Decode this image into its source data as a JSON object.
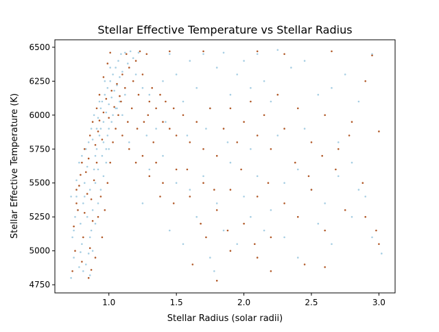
{
  "chart_data": {
    "type": "scatter",
    "title": "Stellar Effective Temperature vs Stellar Radius",
    "xlabel": "Stellar Radius (solar radii)",
    "ylabel": "Stellar Effective Temperature (K)",
    "xlim": [
      0.6,
      3.12
    ],
    "ylim": [
      4690,
      6555
    ],
    "xticks": [
      "1.0",
      "1.5",
      "2.0",
      "2.5",
      "3.0"
    ],
    "yticks": [
      "4750",
      "5000",
      "5250",
      "5500",
      "5750",
      "6000",
      "6250",
      "6500"
    ],
    "grid": false,
    "legend": "none",
    "series": [
      {
        "color": "#a6cee3",
        "points": [
          [
            0.72,
            4800
          ],
          [
            0.74,
            4950
          ],
          [
            0.73,
            5100
          ],
          [
            0.75,
            5250
          ],
          [
            0.72,
            5400
          ],
          [
            0.76,
            5520
          ],
          [
            0.78,
            4880
          ],
          [
            0.8,
            5050
          ],
          [
            0.79,
            5200
          ],
          [
            0.81,
            5350
          ],
          [
            0.82,
            5500
          ],
          [
            0.84,
            5620
          ],
          [
            0.83,
            5750
          ],
          [
            0.86,
            4820
          ],
          [
            0.85,
            4980
          ],
          [
            0.87,
            5150
          ],
          [
            0.88,
            5300
          ],
          [
            0.86,
            5450
          ],
          [
            0.89,
            5600
          ],
          [
            0.9,
            5700
          ],
          [
            0.88,
            5820
          ],
          [
            0.91,
            5900
          ],
          [
            0.92,
            5980
          ],
          [
            0.93,
            5850
          ],
          [
            0.94,
            6050
          ],
          [
            0.95,
            6100
          ],
          [
            0.96,
            5950
          ],
          [
            0.97,
            6150
          ],
          [
            0.98,
            6020
          ],
          [
            0.99,
            6200
          ],
          [
            1.0,
            6080
          ],
          [
            1.01,
            6250
          ],
          [
            1.02,
            6130
          ],
          [
            1.03,
            6300
          ],
          [
            1.04,
            6180
          ],
          [
            1.05,
            6350
          ],
          [
            1.06,
            6220
          ],
          [
            1.07,
            6400
          ],
          [
            1.08,
            6280
          ],
          [
            1.09,
            6450
          ],
          [
            1.1,
            6320
          ],
          [
            1.12,
            6460
          ],
          [
            1.14,
            6380
          ],
          [
            1.16,
            6470
          ],
          [
            1.18,
            6420
          ],
          [
            1.2,
            6300
          ],
          [
            1.22,
            6460
          ],
          [
            1.25,
            6200
          ],
          [
            0.95,
            5700
          ],
          [
            0.92,
            5600
          ],
          [
            0.9,
            5500
          ],
          [
            0.96,
            5800
          ],
          [
            1.0,
            5900
          ],
          [
            0.98,
            5750
          ],
          [
            1.03,
            6000
          ],
          [
            1.05,
            6050
          ],
          [
            0.85,
            5800
          ],
          [
            0.87,
            5900
          ],
          [
            0.89,
            6000
          ],
          [
            0.93,
            6100
          ],
          [
            0.97,
            6250
          ],
          [
            1.01,
            6350
          ],
          [
            0.8,
            5700
          ],
          [
            0.78,
            5650
          ],
          [
            1.3,
            6150
          ],
          [
            1.35,
            5900
          ],
          [
            1.4,
            6250
          ],
          [
            1.45,
            6450
          ],
          [
            1.5,
            6300
          ],
          [
            1.55,
            6100
          ],
          [
            1.6,
            6400
          ],
          [
            1.65,
            6200
          ],
          [
            1.7,
            6450
          ],
          [
            1.75,
            6050
          ],
          [
            1.8,
            6350
          ],
          [
            1.85,
            6460
          ],
          [
            1.9,
            6150
          ],
          [
            1.95,
            6300
          ],
          [
            2.0,
            6400
          ],
          [
            2.05,
            6200
          ],
          [
            2.1,
            6450
          ],
          [
            2.15,
            6250
          ],
          [
            2.2,
            6100
          ],
          [
            2.25,
            6480
          ],
          [
            2.35,
            6350
          ],
          [
            2.45,
            6400
          ],
          [
            2.55,
            6150
          ],
          [
            2.65,
            6200
          ],
          [
            2.75,
            6300
          ],
          [
            2.85,
            6100
          ],
          [
            2.95,
            6450
          ],
          [
            1.3,
            5600
          ],
          [
            1.4,
            5700
          ],
          [
            1.5,
            5500
          ],
          [
            1.6,
            5450
          ],
          [
            1.7,
            5550
          ],
          [
            1.8,
            5350
          ],
          [
            1.9,
            5650
          ],
          [
            2.0,
            5400
          ],
          [
            2.1,
            5550
          ],
          [
            2.2,
            5300
          ],
          [
            2.3,
            5500
          ],
          [
            2.4,
            5600
          ],
          [
            2.5,
            5450
          ],
          [
            2.6,
            5350
          ],
          [
            2.7,
            5550
          ],
          [
            2.8,
            5650
          ],
          [
            2.9,
            5400
          ],
          [
            1.25,
            5350
          ],
          [
            1.45,
            5150
          ],
          [
            1.55,
            5050
          ],
          [
            1.65,
            5250
          ],
          [
            1.75,
            4950
          ],
          [
            1.78,
            4850
          ],
          [
            1.85,
            5150
          ],
          [
            1.95,
            5050
          ],
          [
            2.05,
            5250
          ],
          [
            2.15,
            5150
          ],
          [
            2.3,
            5100
          ],
          [
            2.4,
            4950
          ],
          [
            2.55,
            5200
          ],
          [
            2.65,
            5050
          ],
          [
            2.8,
            5250
          ],
          [
            2.95,
            5100
          ],
          [
            3.02,
            4980
          ],
          [
            2.85,
            5450
          ],
          [
            2.7,
            5800
          ],
          [
            2.45,
            5900
          ],
          [
            2.25,
            5850
          ],
          [
            2.05,
            5750
          ],
          [
            1.88,
            5800
          ],
          [
            1.72,
            5900
          ],
          [
            1.58,
            5850
          ],
          [
            1.42,
            5950
          ],
          [
            1.28,
            5850
          ],
          [
            1.15,
            5800
          ],
          [
            1.1,
            6000
          ],
          [
            1.12,
            6150
          ],
          [
            1.08,
            6100
          ],
          [
            1.06,
            6050
          ],
          [
            1.02,
            5950
          ],
          [
            0.99,
            5850
          ],
          [
            0.94,
            5900
          ],
          [
            0.91,
            5750
          ],
          [
            0.76,
            5400
          ],
          [
            0.77,
            5300
          ],
          [
            0.74,
            5150
          ],
          [
            0.82,
            5400
          ],
          [
            0.84,
            5250
          ],
          [
            0.86,
            5100
          ],
          [
            0.88,
            5000
          ],
          [
            0.9,
            5200
          ],
          [
            0.92,
            5350
          ],
          [
            0.94,
            5450
          ],
          [
            0.96,
            5550
          ],
          [
            0.98,
            5650
          ],
          [
            1.0,
            5750
          ],
          [
            0.83,
            4900
          ],
          [
            0.81,
            4850
          ],
          [
            0.79,
            4990
          ]
        ]
      },
      {
        "color": "#b15928",
        "points": [
          [
            0.73,
            4850
          ],
          [
            0.75,
            5000
          ],
          [
            0.74,
            5180
          ],
          [
            0.77,
            5300
          ],
          [
            0.76,
            5450
          ],
          [
            0.79,
            5560
          ],
          [
            0.8,
            4920
          ],
          [
            0.81,
            5100
          ],
          [
            0.82,
            5280
          ],
          [
            0.84,
            5420
          ],
          [
            0.83,
            5580
          ],
          [
            0.85,
            5680
          ],
          [
            0.87,
            4860
          ],
          [
            0.86,
            5020
          ],
          [
            0.88,
            5220
          ],
          [
            0.87,
            5380
          ],
          [
            0.89,
            5520
          ],
          [
            0.91,
            5650
          ],
          [
            0.9,
            5780
          ],
          [
            0.92,
            5880
          ],
          [
            0.93,
            5960
          ],
          [
            0.95,
            5820
          ],
          [
            0.96,
            6020
          ],
          [
            0.98,
            6120
          ],
          [
            1.0,
            5980
          ],
          [
            1.02,
            6180
          ],
          [
            1.04,
            6060
          ],
          [
            1.06,
            6230
          ],
          [
            1.08,
            6140
          ],
          [
            1.1,
            6300
          ],
          [
            1.12,
            6200
          ],
          [
            1.15,
            6350
          ],
          [
            1.18,
            6250
          ],
          [
            1.2,
            6400
          ],
          [
            1.22,
            6150
          ],
          [
            1.25,
            6300
          ],
          [
            1.28,
            6450
          ],
          [
            1.3,
            6100
          ],
          [
            1.32,
            6200
          ],
          [
            1.35,
            6050
          ],
          [
            1.38,
            6150
          ],
          [
            1.4,
            5950
          ],
          [
            1.42,
            6100
          ],
          [
            1.45,
            5900
          ],
          [
            1.48,
            6050
          ],
          [
            1.5,
            5850
          ],
          [
            1.55,
            6000
          ],
          [
            1.6,
            5800
          ],
          [
            1.65,
            5950
          ],
          [
            1.7,
            5750
          ],
          [
            1.75,
            6050
          ],
          [
            1.8,
            5700
          ],
          [
            1.85,
            5900
          ],
          [
            1.9,
            6050
          ],
          [
            1.95,
            5800
          ],
          [
            2.0,
            5950
          ],
          [
            2.05,
            6100
          ],
          [
            2.1,
            5850
          ],
          [
            2.15,
            6000
          ],
          [
            2.2,
            5750
          ],
          [
            2.25,
            6150
          ],
          [
            2.3,
            5900
          ],
          [
            2.4,
            6050
          ],
          [
            2.5,
            5800
          ],
          [
            2.6,
            6000
          ],
          [
            2.7,
            5750
          ],
          [
            2.8,
            5950
          ],
          [
            2.9,
            6250
          ],
          [
            3.0,
            5880
          ],
          [
            1.15,
            5750
          ],
          [
            1.2,
            5650
          ],
          [
            1.25,
            5700
          ],
          [
            1.3,
            5550
          ],
          [
            1.35,
            5650
          ],
          [
            1.4,
            5500
          ],
          [
            1.5,
            5600
          ],
          [
            1.6,
            5400
          ],
          [
            1.7,
            5500
          ],
          [
            1.8,
            5300
          ],
          [
            1.9,
            5450
          ],
          [
            2.0,
            5200
          ],
          [
            2.1,
            5400
          ],
          [
            2.2,
            5100
          ],
          [
            2.3,
            5350
          ],
          [
            2.4,
            5250
          ],
          [
            2.5,
            5450
          ],
          [
            2.6,
            5150
          ],
          [
            2.75,
            5300
          ],
          [
            2.9,
            5250
          ],
          [
            3.0,
            5050
          ],
          [
            1.62,
            4900
          ],
          [
            1.72,
            5100
          ],
          [
            1.8,
            4780
          ],
          [
            1.9,
            5000
          ],
          [
            2.1,
            4950
          ],
          [
            2.2,
            4850
          ],
          [
            2.45,
            4900
          ],
          [
            2.6,
            4880
          ],
          [
            0.85,
            4800
          ],
          [
            0.9,
            4950
          ],
          [
            0.95,
            5100
          ],
          [
            0.97,
            5300
          ],
          [
            0.99,
            5500
          ],
          [
            1.01,
            5650
          ],
          [
            1.03,
            5800
          ],
          [
            1.05,
            5900
          ],
          [
            1.07,
            6000
          ],
          [
            1.09,
            6100
          ],
          [
            0.94,
            5400
          ],
          [
            0.92,
            5250
          ],
          [
            0.8,
            5650
          ],
          [
            0.78,
            5480
          ],
          [
            0.76,
            5350
          ],
          [
            0.82,
            5750
          ],
          [
            0.86,
            5850
          ],
          [
            0.88,
            5950
          ],
          [
            0.91,
            6050
          ],
          [
            0.93,
            6150
          ],
          [
            0.96,
            6280
          ],
          [
            0.99,
            6380
          ],
          [
            1.01,
            6460
          ],
          [
            1.13,
            6450
          ],
          [
            1.23,
            6470
          ],
          [
            1.45,
            6470
          ],
          [
            1.7,
            6470
          ],
          [
            2.1,
            6470
          ],
          [
            2.3,
            6450
          ],
          [
            2.65,
            6470
          ],
          [
            2.95,
            6440
          ],
          [
            1.33,
            5800
          ],
          [
            1.38,
            5400
          ],
          [
            1.48,
            5350
          ],
          [
            1.58,
            5600
          ],
          [
            1.68,
            5200
          ],
          [
            1.78,
            5450
          ],
          [
            1.88,
            5150
          ],
          [
            1.98,
            5600
          ],
          [
            2.08,
            5050
          ],
          [
            2.18,
            5500
          ],
          [
            2.38,
            5650
          ],
          [
            2.48,
            5550
          ],
          [
            2.58,
            5700
          ],
          [
            2.68,
            5600
          ],
          [
            2.78,
            5850
          ],
          [
            2.88,
            5500
          ],
          [
            2.98,
            5150
          ],
          [
            1.1,
            5850
          ],
          [
            1.14,
            5950
          ],
          [
            1.17,
            6050
          ],
          [
            1.21,
            5900
          ],
          [
            1.26,
            5950
          ],
          [
            1.29,
            6000
          ]
        ]
      }
    ]
  }
}
